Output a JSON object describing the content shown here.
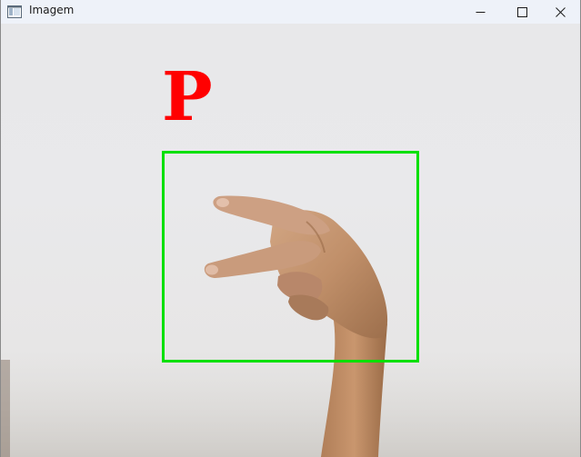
{
  "window": {
    "title": "Imagem",
    "controls": {
      "minimize_icon": "minimize-icon",
      "maximize_icon": "maximize-icon",
      "close_icon": "close-icon"
    }
  },
  "detection": {
    "label": "P",
    "label_color": "#ff0000",
    "box_color": "#00e000"
  }
}
